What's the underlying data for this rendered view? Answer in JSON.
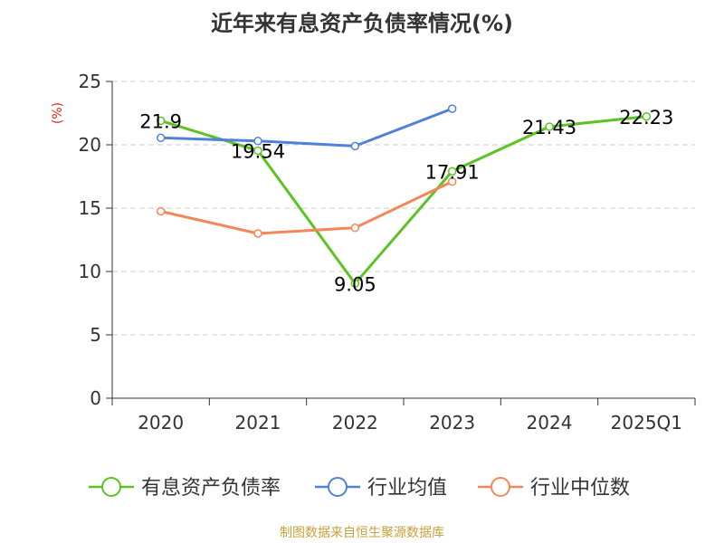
{
  "chart_data": {
    "type": "line",
    "title": "近年来有息资产负债率情况(%)",
    "ylabel": "(%)",
    "categories": [
      "2020",
      "2021",
      "2022",
      "2023",
      "2024",
      "2025Q1"
    ],
    "yticks": [
      "0",
      "5",
      "10",
      "15",
      "20",
      "25"
    ],
    "ylim": [
      0,
      25
    ],
    "grid": true,
    "legend_position": "bottom",
    "series": [
      {
        "name": "有息资产负债率",
        "color": "#5bc424",
        "values": [
          21.9,
          19.54,
          9.05,
          17.91,
          21.43,
          22.23
        ],
        "labels": [
          "21.9",
          "19.54",
          "9.05",
          "17.91",
          "21.43",
          "22.23"
        ]
      },
      {
        "name": "行业均值",
        "color": "#4f81d9",
        "values": [
          20.55,
          20.3,
          19.9,
          22.85,
          null,
          null
        ]
      },
      {
        "name": "行业中位数",
        "color": "#f4875a",
        "values": [
          14.75,
          13.0,
          13.45,
          17.1,
          null,
          null
        ]
      }
    ]
  },
  "source": "制图数据来自恒生聚源数据库"
}
